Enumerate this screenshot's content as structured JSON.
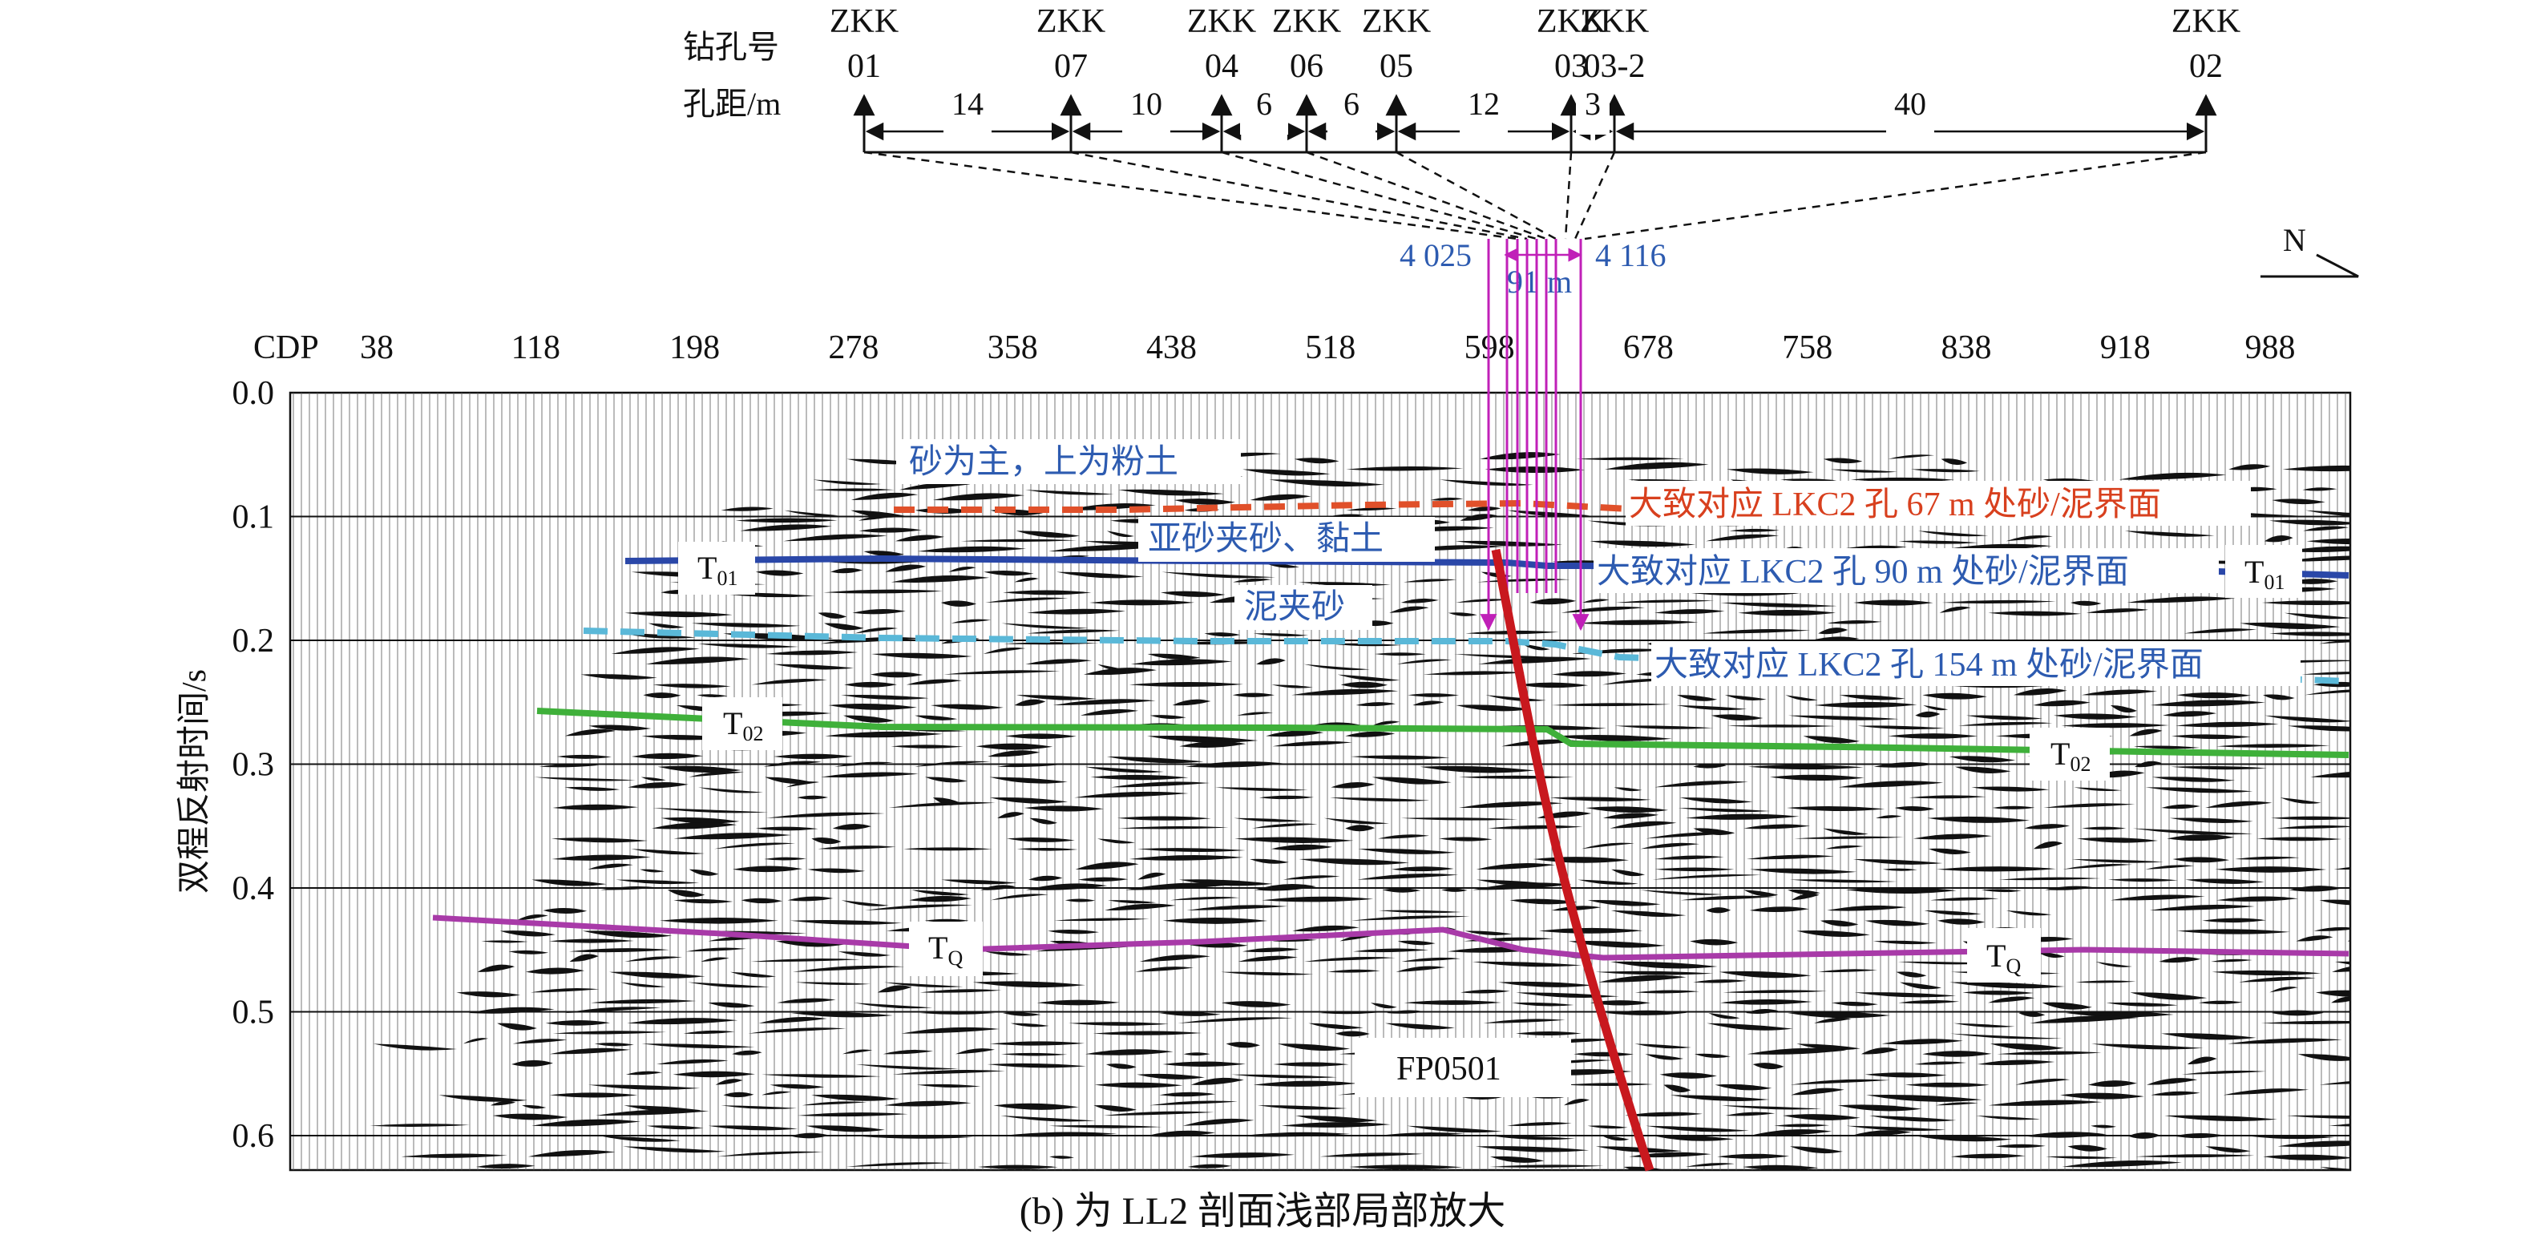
{
  "header": {
    "row_label_borehole": "钻孔号",
    "row_label_spacing": "孔距/m",
    "boreholes": [
      {
        "top": "ZKK",
        "id": "01"
      },
      {
        "top": "ZKK",
        "id": "07"
      },
      {
        "top": "ZKK",
        "id": "04"
      },
      {
        "top": "ZKK",
        "id": "06"
      },
      {
        "top": "ZKK",
        "id": "05"
      },
      {
        "top": "ZKK",
        "id": "03"
      },
      {
        "top": "ZKK",
        "id": "03-2"
      },
      {
        "top": "ZKK",
        "id": "02"
      }
    ],
    "spacings": [
      "14",
      "10",
      "6",
      "6",
      "12",
      "3",
      "40"
    ],
    "cdp_left": "4 025",
    "cdp_right": "4 116",
    "span": "91 m",
    "north": "N"
  },
  "axes": {
    "x_label": "CDP",
    "x_ticks": [
      "38",
      "118",
      "198",
      "278",
      "358",
      "438",
      "518",
      "598",
      "678",
      "758",
      "838",
      "918",
      "988"
    ],
    "y_label": "双程反射时间/s",
    "y_ticks": [
      "0.0",
      "0.1",
      "0.2",
      "0.3",
      "0.4",
      "0.5",
      "0.6"
    ]
  },
  "annotations": {
    "sand_top": "砂为主，上为粉土",
    "sand_clay": "亚砂夹砂、黏土",
    "mud_sand": "泥夹砂",
    "lkc2_67": "大致对应 LKC2 孔 67 m 处砂/泥界面",
    "lkc2_90": "大致对应 LKC2 孔 90 m 处砂/泥界面",
    "lkc2_154": "大致对应 LKC2 孔 154 m 处砂/泥界面",
    "fault": "FP0501"
  },
  "horizons": {
    "t01": {
      "main": "T",
      "sub": "01"
    },
    "t02": {
      "main": "T",
      "sub": "02"
    },
    "tq": {
      "main": "T",
      "sub": "Q"
    }
  },
  "colors": {
    "horizon_67": "#e0502a",
    "t01": "#2a47a8",
    "horizon_154": "#5ab8d8",
    "t02": "#3fb03a",
    "tq": "#a83aa8",
    "fault": "#c8181e",
    "borehole_lines": "#c020b8",
    "blue_text": "#2d5bb0",
    "red_text": "#d8401e"
  },
  "caption": "(b) 为 LL2 剖面浅部局部放大"
}
